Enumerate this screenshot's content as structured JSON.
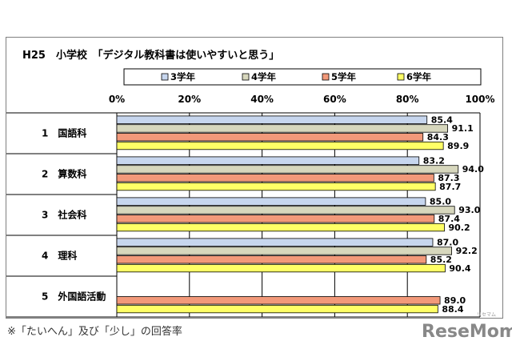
{
  "footnote": "※「たいへん」及び「少し」の回答率",
  "watermark": {
    "text": "ReseMom",
    "sub": "リセマム"
  },
  "chart_data": {
    "type": "bar",
    "orientation": "horizontal",
    "title": "H25　小学校　「デジタル教科書は使いやすいと思う」",
    "categories": [
      "1　国語科",
      "2　算数科",
      "3　社会科",
      "4　理科",
      "5　外国語活動"
    ],
    "series": [
      {
        "name": "3学年",
        "color": "#c7d6ee",
        "values": [
          85.4,
          83.2,
          85.0,
          87.0,
          null
        ],
        "labels": [
          "85.4",
          "83.2",
          "85.0",
          "87.0",
          ""
        ]
      },
      {
        "name": "4学年",
        "color": "#d7d7bd",
        "values": [
          91.1,
          94.0,
          93.0,
          92.2,
          null
        ],
        "labels": [
          "91.1",
          "94.0",
          "93.0",
          "92.2",
          ""
        ]
      },
      {
        "name": "5学年",
        "color": "#f2997a",
        "values": [
          84.3,
          87.3,
          87.4,
          85.2,
          89.0
        ],
        "labels": [
          "84.3",
          "87.3",
          "87.4",
          "85.2",
          "89.0"
        ]
      },
      {
        "name": "6学年",
        "color": "#ffff66",
        "values": [
          89.9,
          87.7,
          90.2,
          90.4,
          88.4
        ],
        "labels": [
          "89.9",
          "87.7",
          "90.2",
          "90.4",
          "88.4"
        ]
      }
    ],
    "xlim": [
      0,
      100
    ],
    "ticks": [
      "0%",
      "20%",
      "40%",
      "60%",
      "80%",
      "100%"
    ],
    "legend_position": "top",
    "grid": true
  }
}
